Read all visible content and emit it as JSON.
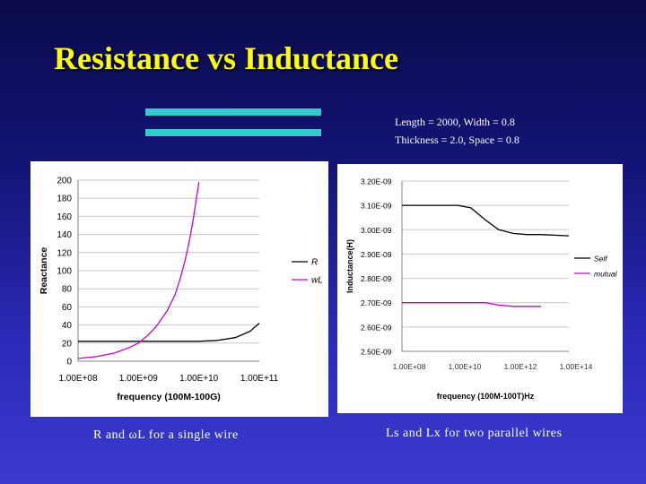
{
  "slide": {
    "title": "Resistance vs Inductance",
    "params_line1": "Length = 2000, Width = 0.8",
    "params_line2": "Thickness = 2.0, Space = 0.8",
    "caption_left": "R and ωL for a single wire",
    "caption_right": "Ls and Lx for two parallel wires",
    "accent_color": "#ffff00",
    "bar_color": "#33cccc"
  },
  "chart_data": [
    {
      "type": "line",
      "xlabel": "frequency (100M-100G)",
      "ylabel": "Reactance",
      "xscale": "log",
      "xlim": [
        100000000,
        100000000000
      ],
      "ylim": [
        0,
        200
      ],
      "yticks": [
        0,
        20,
        40,
        60,
        80,
        100,
        120,
        140,
        160,
        180,
        200
      ],
      "yticklabels": [
        "0",
        "20",
        "40",
        "60",
        "80",
        "100",
        "120",
        "140",
        "160",
        "180",
        "200"
      ],
      "xticks": [
        100000000,
        1000000000,
        10000000000,
        100000000000
      ],
      "xticklabels": [
        "1.00E+08",
        "1.00E+09",
        "1.00E+10",
        "1.00E+11"
      ],
      "grid": "horizontal",
      "legend": "right",
      "series": [
        {
          "name": "R",
          "color": "#000000",
          "x": [
            100000000,
            300000000,
            1000000000,
            3000000000,
            10000000000,
            20000000000,
            40000000000,
            70000000000,
            100000000000
          ],
          "y": [
            22,
            22,
            22,
            22,
            22,
            23,
            26,
            33,
            42
          ]
        },
        {
          "name": "wL",
          "color": "#cc00cc",
          "x": [
            100000000,
            200000000,
            400000000,
            700000000,
            1000000000,
            1500000000,
            2000000000,
            3000000000,
            4000000000,
            5000000000,
            6000000000,
            7000000000,
            8000000000,
            9000000000,
            10000000000
          ],
          "y": [
            3,
            5,
            9,
            15,
            20,
            30,
            39,
            56,
            73,
            93,
            113,
            134,
            155,
            178,
            198
          ]
        }
      ]
    },
    {
      "type": "line",
      "xlabel": "frequency (100M-100T)Hz",
      "ylabel": "Inductance(H)",
      "xscale": "log",
      "xlim": [
        100000000,
        100000000000000
      ],
      "ylim": [
        2.5e-09,
        3.2e-09
      ],
      "yticks": [
        2.5e-09,
        2.6e-09,
        2.7e-09,
        2.8e-09,
        2.9e-09,
        3e-09,
        3.1e-09,
        3.2e-09
      ],
      "yticklabels": [
        "2.50E-09",
        "2.60E-09",
        "2.70E-09",
        "2.80E-09",
        "2.90E-09",
        "3.00E-09",
        "3.10E-09",
        "3.20E-09"
      ],
      "xticks": [
        100000000,
        10000000000,
        1000000000000,
        100000000000000
      ],
      "xticklabels": [
        "1.00E+08",
        "1.00E+10",
        "1.00E+12",
        "1.00E+14"
      ],
      "grid": "horizontal",
      "legend": "right",
      "series": [
        {
          "name": "Self",
          "color": "#000000",
          "x": [
            100000000,
            1000000000,
            10000000000,
            30000000000,
            100000000000,
            300000000000,
            1000000000000,
            3000000000000,
            10000000000000,
            100000000000000
          ],
          "y": [
            3.1e-09,
            3.1e-09,
            3.1e-09,
            3.09e-09,
            3.04e-09,
            3e-09,
            2.985e-09,
            2.98e-09,
            2.98e-09,
            2.975e-09
          ]
        },
        {
          "name": "mutual",
          "color": "#cc00cc",
          "x": [
            100000000,
            1000000000,
            10000000000,
            100000000000,
            300000000000,
            1000000000000,
            3000000000000,
            10000000000000
          ],
          "y": [
            2.7e-09,
            2.7e-09,
            2.7e-09,
            2.7e-09,
            2.69e-09,
            2.685e-09,
            2.685e-09,
            2.685e-09
          ]
        }
      ]
    }
  ]
}
